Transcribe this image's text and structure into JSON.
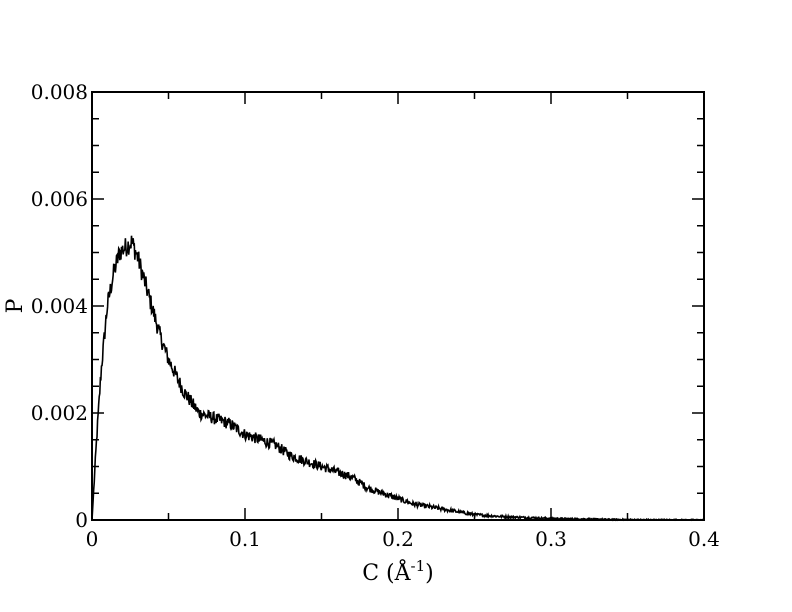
{
  "chart_data": {
    "type": "line",
    "title": "",
    "xlabel": "C (Å",
    "xlabel_sup": "-1",
    "xlabel_close": ")",
    "ylabel": "P",
    "xlim": [
      0,
      0.4
    ],
    "ylim": [
      0,
      0.008
    ],
    "x_ticks": [
      0,
      0.1,
      0.2,
      0.3,
      0.4
    ],
    "x_tick_labels": [
      "0",
      "0.1",
      "0.2",
      "0.3",
      "0.4"
    ],
    "y_ticks": [
      0,
      0.002,
      0.004,
      0.006,
      0.008
    ],
    "y_tick_labels": [
      "0",
      "0.002",
      "0.004",
      "0.006",
      "0.008"
    ],
    "grid": false,
    "line_color": "#000000",
    "series": [
      {
        "x": [
          0,
          0.003,
          0.006,
          0.01,
          0.014,
          0.018,
          0.022,
          0.026,
          0.03,
          0.035,
          0.04,
          0.045,
          0.05,
          0.055,
          0.06,
          0.065,
          0.07,
          0.08,
          0.09,
          0.1,
          0.11,
          0.12,
          0.13,
          0.14,
          0.15,
          0.16,
          0.17,
          0.18,
          0.19,
          0.2,
          0.21,
          0.22,
          0.23,
          0.24,
          0.25,
          0.26,
          0.27,
          0.28,
          0.29,
          0.3,
          0.32,
          0.34,
          0.36,
          0.38,
          0.4
        ],
        "values": [
          0,
          0.0015,
          0.0028,
          0.004,
          0.0046,
          0.005,
          0.0051,
          0.0052,
          0.0049,
          0.0044,
          0.0039,
          0.0034,
          0.003,
          0.0027,
          0.0024,
          0.0022,
          0.002,
          0.0019,
          0.0018,
          0.0016,
          0.0015,
          0.0014,
          0.0012,
          0.0011,
          0.001,
          0.0009,
          0.0008,
          0.0006,
          0.0005,
          0.0004,
          0.0003,
          0.00025,
          0.0002,
          0.00015,
          0.0001,
          8e-05,
          6e-05,
          5e-05,
          4e-05,
          3e-05,
          2e-05,
          1e-05,
          5e-06,
          2e-06,
          0
        ]
      }
    ]
  }
}
